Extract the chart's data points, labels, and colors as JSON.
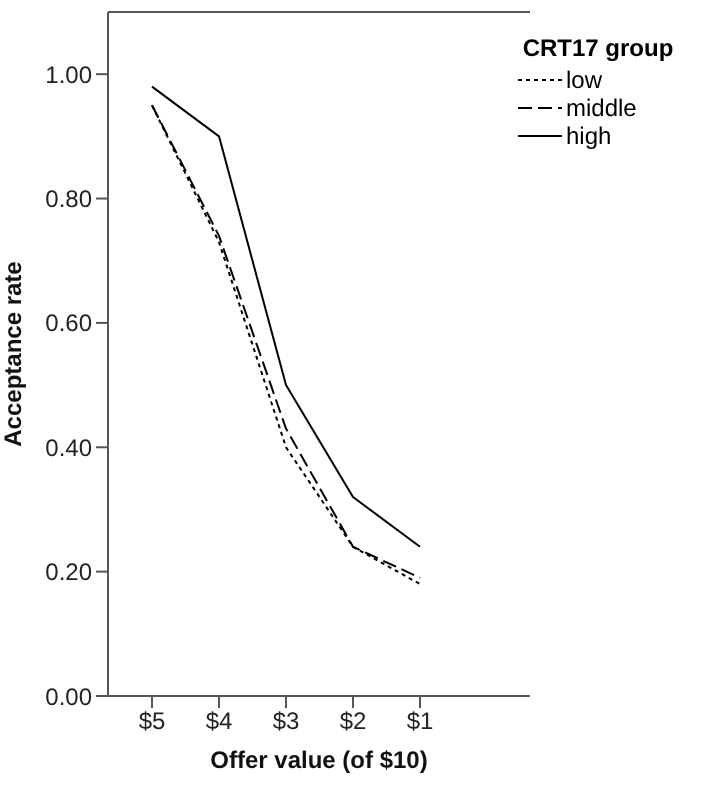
{
  "chart_data": {
    "type": "line",
    "xlabel": "Offer value (of $10)",
    "ylabel": "Acceptance rate",
    "legend_title": "CRT17 group",
    "categories": [
      "$5",
      "$4",
      "$3",
      "$2",
      "$1"
    ],
    "series": [
      {
        "name": "low",
        "color": "#000000",
        "line_style": "dotted",
        "values": [
          0.95,
          0.73,
          0.4,
          0.24,
          0.18
        ]
      },
      {
        "name": "middle",
        "color": "#000000",
        "line_style": "dashed",
        "values": [
          0.95,
          0.74,
          0.43,
          0.24,
          0.19
        ]
      },
      {
        "name": "high",
        "color": "#000000",
        "line_style": "solid",
        "values": [
          0.98,
          0.9,
          0.5,
          0.32,
          0.24
        ]
      }
    ],
    "ylim": [
      0,
      1.1
    ],
    "yticks": [
      {
        "value": 0,
        "label": "0.00"
      },
      {
        "value": 0.2,
        "label": "0.20"
      },
      {
        "value": 0.4,
        "label": "0.40"
      },
      {
        "value": 0.6,
        "label": "0.60"
      },
      {
        "value": 0.8,
        "label": "0.80"
      },
      {
        "value": 1,
        "label": "1.00"
      }
    ],
    "grid": false,
    "legend": "top right",
    "marker": "none"
  }
}
